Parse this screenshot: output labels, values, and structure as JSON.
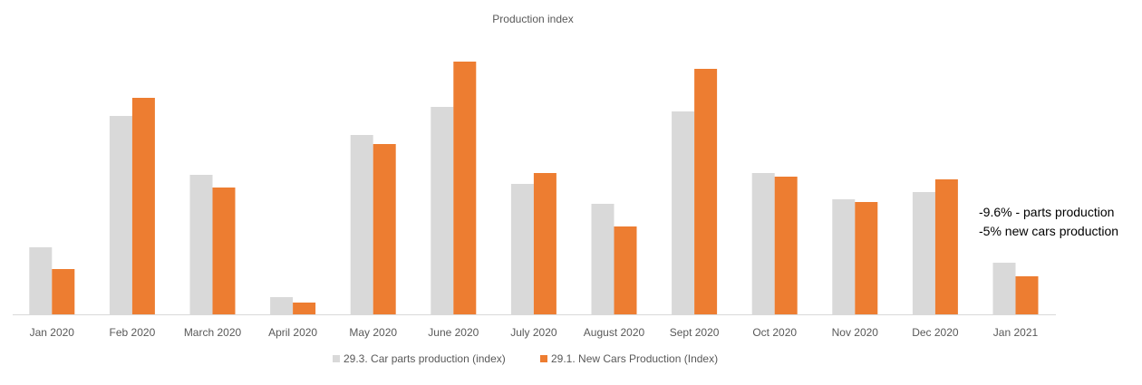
{
  "chart_data": {
    "type": "bar",
    "title": "Production index",
    "xlabel": "",
    "ylabel": "",
    "ylim": [
      0,
      300
    ],
    "grid": false,
    "legend_position": "bottom",
    "categories": [
      "Jan 2020",
      "Feb 2020",
      "March 2020",
      "April 2020",
      "May 2020",
      "June 2020",
      "July 2020",
      "August 2020",
      "Sept 2020",
      "Oct 2020",
      "Nov 2020",
      "Dec 2020",
      "Jan 2021"
    ],
    "series": [
      {
        "name": "29.3. Car parts production (index)",
        "color": "#d9d9d9",
        "values": [
          74,
          219,
          154,
          19,
          198,
          229,
          144,
          122,
          224,
          156,
          127,
          135,
          57
        ]
      },
      {
        "name": "29.1. New Cars Production (Index)",
        "color": "#ed7d31",
        "values": [
          50,
          239,
          140,
          13,
          188,
          279,
          156,
          97,
          271,
          152,
          124,
          149,
          42
        ]
      }
    ],
    "annotations": [
      "-9.6% - parts production",
      "-5% new cars production"
    ]
  }
}
